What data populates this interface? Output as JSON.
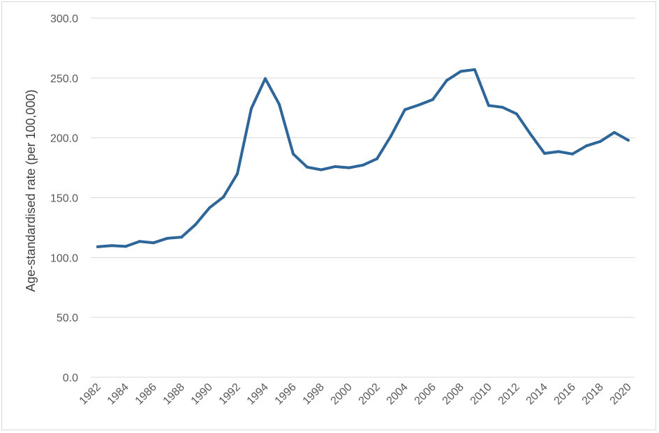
{
  "chart_data": {
    "type": "line",
    "title": "",
    "xlabel": "",
    "ylabel": "Age-standardised rate (per 100,000)",
    "ylim": [
      0,
      300
    ],
    "y_ticks": [
      "0.0",
      "50.0",
      "100.0",
      "150.0",
      "200.0",
      "250.0",
      "300.0"
    ],
    "x_tick_labels": [
      "1982",
      "1984",
      "1986",
      "1988",
      "1990",
      "1992",
      "1994",
      "1996",
      "1998",
      "2000",
      "2002",
      "2004",
      "2006",
      "2008",
      "2010",
      "2012",
      "2014",
      "2016",
      "2018",
      "2020"
    ],
    "grid": "horizontal",
    "legend": "none",
    "colors": {
      "line": "#2e6699",
      "grid": "#d9d9d9",
      "text": "#595959"
    },
    "series": [
      {
        "x": [
          1982,
          1983,
          1984,
          1985,
          1986,
          1987,
          1988,
          1989,
          1990,
          1991,
          1992,
          1993,
          1994,
          1995,
          1996,
          1997,
          1998,
          1999,
          2000,
          2001,
          2002,
          2003,
          2004,
          2005,
          2006,
          2007,
          2008,
          2009,
          2010,
          2011,
          2012,
          2013,
          2014,
          2015,
          2016,
          2017,
          2018,
          2019,
          2020
        ],
        "values": [
          109.0,
          110.0,
          109.3,
          113.5,
          112.3,
          116.1,
          117.0,
          127.5,
          141.5,
          150.5,
          170.0,
          224.5,
          249.5,
          228.0,
          186.5,
          175.5,
          173.3,
          176.0,
          175.0,
          177.2,
          182.5,
          201.5,
          223.5,
          227.5,
          232.0,
          248.0,
          255.5,
          257.0,
          227.0,
          225.5,
          220.0,
          203.0,
          187.0,
          188.5,
          186.5,
          193.3,
          197.0,
          204.5,
          198.0
        ]
      }
    ]
  }
}
